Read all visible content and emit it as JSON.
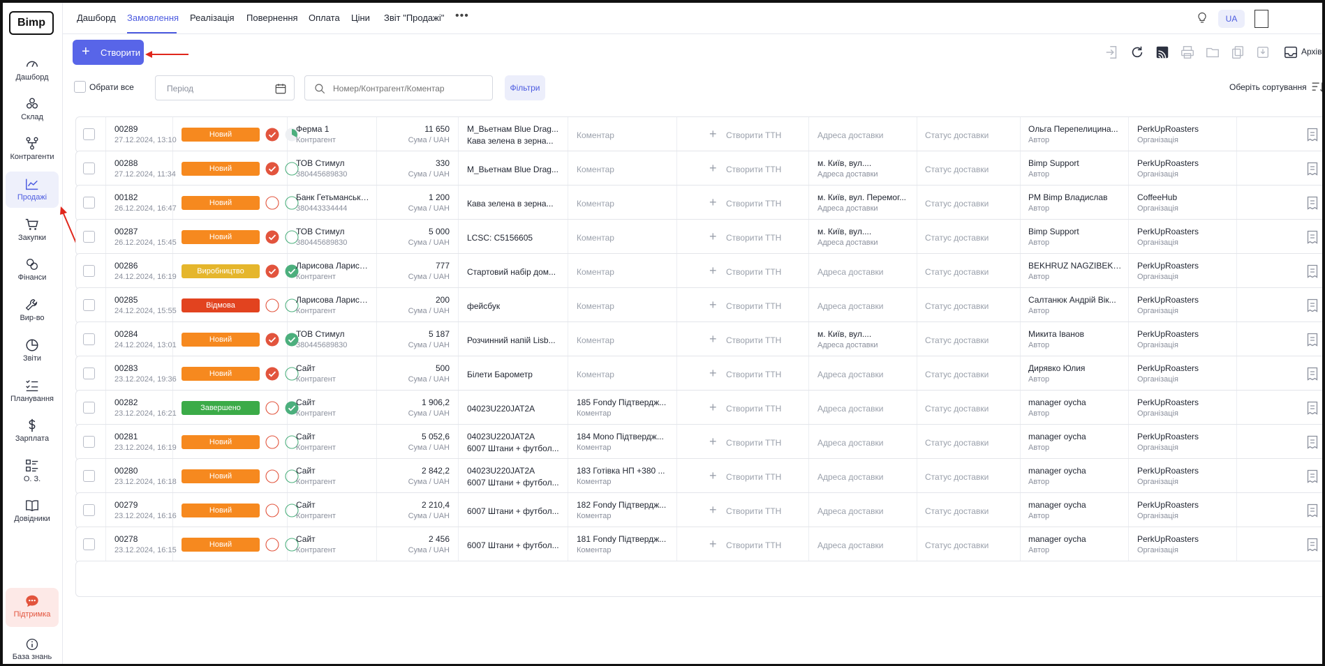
{
  "sidebar": {
    "logo": "Bimp",
    "items": [
      {
        "label": "Дашборд",
        "icon": "gauge-icon"
      },
      {
        "label": "Склад",
        "icon": "boxes-icon"
      },
      {
        "label": "Контрагенти",
        "icon": "network-icon"
      },
      {
        "label": "Продажі",
        "icon": "chart-line-icon",
        "active": true
      },
      {
        "label": "Закупки",
        "icon": "cart-icon"
      },
      {
        "label": "Фінанси",
        "icon": "coins-icon"
      },
      {
        "label": "Вир-во",
        "icon": "wrench-icon"
      },
      {
        "label": "Звіти",
        "icon": "pie-chart-icon"
      },
      {
        "label": "Планування",
        "icon": "checklist-icon"
      },
      {
        "label": "Зарплата",
        "icon": "dollar-icon"
      },
      {
        "label": "О. З.",
        "icon": "list-grid-icon"
      },
      {
        "label": "Довідники",
        "icon": "book-icon"
      }
    ],
    "support": "Підтримка",
    "knowledge_base": "База знань"
  },
  "topnav": {
    "tabs": [
      "Дашборд",
      "Замовлення",
      "Реалізація",
      "Повернення",
      "Оплата",
      "Ціни",
      "Звіт \"Продажі\""
    ],
    "active_tab": "Замовлення",
    "more": "•••",
    "lang": "UA"
  },
  "toolbar": {
    "create_label": "Створити",
    "archive_label": "Архів"
  },
  "filters": {
    "select_all": "Обрати все",
    "period_placeholder": "Період",
    "search_placeholder": "Номер/Контрагент/Коментар",
    "filters_button": "Фільтри",
    "sort_label": "Оберіть сортування"
  },
  "colors": {
    "accent": "#5865e8",
    "status_new": "#f6891f",
    "status_production": "#e5b62c",
    "status_rejected": "#e2431f",
    "status_done": "#3bab48",
    "check_red": "#e2543d",
    "check_green": "#4caf7d"
  },
  "labels": {
    "amount_caption": "Сума / UAH",
    "comment_placeholder": "Коментар",
    "comment_caption": "Коментар",
    "create_ttn": "Створити ТТН",
    "address_placeholder": "Адреса доставки",
    "address_caption": "Адреса доставки",
    "delivery_status": "Статус доставки",
    "author_caption": "Автор",
    "org_caption": "Організація",
    "contractor_caption": "Контрагент"
  },
  "orders": [
    {
      "number": "00289",
      "date": "27.12.2024, 13:10",
      "status": "Новий",
      "status_type": "new",
      "c1": "red-check",
      "c2": "progress",
      "contractor": "Ферма 1",
      "contractor_sub": "Контрагент",
      "amount": "11 650",
      "product1": "M_Вьетнам Blue Drag...",
      "product2": "Кава зелена в зерна...",
      "comment": "",
      "comment_sub": "",
      "address": "",
      "address_sub": "",
      "author": "Ольга Перепелицина...",
      "org": "PerkUpRoasters"
    },
    {
      "number": "00288",
      "date": "27.12.2024, 11:34",
      "status": "Новий",
      "status_type": "new",
      "c1": "red-check",
      "c2": "empty-green",
      "contractor": "ТОВ Стимул",
      "contractor_sub": "380445689830",
      "amount": "330",
      "product1": "M_Вьетнам Blue Drag...",
      "product2": "",
      "comment": "",
      "comment_sub": "",
      "address": "м. Київ, вул....",
      "address_sub": "Адреса доставки",
      "author": "Bimp Support",
      "org": "PerkUpRoasters"
    },
    {
      "number": "00182",
      "date": "26.12.2024, 16:47",
      "status": "Новий",
      "status_type": "new",
      "c1": "empty-red",
      "c2": "empty-green",
      "contractor": "Банк Гетьманське сх...",
      "contractor_sub": "380443334444",
      "amount": "1 200",
      "product1": "Кава зелена в зерна...",
      "product2": "",
      "comment": "",
      "comment_sub": "",
      "address": "м. Київ, вул. Перемог...",
      "address_sub": "Адреса доставки",
      "author": "PM Bimp Владислав",
      "org": "CoffeeHub"
    },
    {
      "number": "00287",
      "date": "26.12.2024, 15:45",
      "status": "Новий",
      "status_type": "new",
      "c1": "red-check",
      "c2": "empty-green",
      "contractor": "ТОВ Стимул",
      "contractor_sub": "380445689830",
      "amount": "5 000",
      "product1": "LCSC: C5156605",
      "product2": "",
      "comment": "",
      "comment_sub": "",
      "address": "м. Київ, вул....",
      "address_sub": "Адреса доставки",
      "author": "Bimp Support",
      "org": "PerkUpRoasters"
    },
    {
      "number": "00286",
      "date": "24.12.2024, 16:19",
      "status": "Виробництво",
      "status_type": "production",
      "c1": "red-check",
      "c2": "green-check",
      "contractor": "Ларисова Лариса Ла...",
      "contractor_sub": "Контрагент",
      "amount": "777",
      "product1": "Стартовий набір дом...",
      "product2": "",
      "comment": "",
      "comment_sub": "",
      "address": "",
      "address_sub": "",
      "author": "BEKHRUZ NAGZIBEKOV",
      "org": "PerkUpRoasters"
    },
    {
      "number": "00285",
      "date": "24.12.2024, 15:55",
      "status": "Відмова",
      "status_type": "rejected",
      "c1": "empty-red",
      "c2": "empty-green",
      "contractor": "Ларисова Лариса Ла...",
      "contractor_sub": "Контрагент",
      "amount": "200",
      "product1": "фейсбук",
      "product2": "",
      "comment": "",
      "comment_sub": "",
      "address": "",
      "address_sub": "",
      "author": "Салтанюк Андрій Вік...",
      "org": "PerkUpRoasters"
    },
    {
      "number": "00284",
      "date": "24.12.2024, 13:01",
      "status": "Новий",
      "status_type": "new",
      "c1": "red-check",
      "c2": "green-check",
      "contractor": "ТОВ Стимул",
      "contractor_sub": "380445689830",
      "amount": "5 187",
      "product1": "Розчинний напій Lisb...",
      "product2": "",
      "comment": "",
      "comment_sub": "",
      "address": "м. Київ, вул....",
      "address_sub": "Адреса доставки",
      "author": "Микита Іванов",
      "org": "PerkUpRoasters"
    },
    {
      "number": "00283",
      "date": "23.12.2024, 19:36",
      "status": "Новий",
      "status_type": "new",
      "c1": "red-check",
      "c2": "empty-green",
      "contractor": "Сайт",
      "contractor_sub": "Контрагент",
      "amount": "500",
      "product1": "Білети Барометр",
      "product2": "",
      "comment": "",
      "comment_sub": "",
      "address": "",
      "address_sub": "",
      "author": "Дирявко Юлия",
      "org": "PerkUpRoasters"
    },
    {
      "number": "00282",
      "date": "23.12.2024, 16:21",
      "status": "Завершено",
      "status_type": "done",
      "c1": "empty-red",
      "c2": "green-check",
      "contractor": "Сайт",
      "contractor_sub": "Контрагент",
      "amount": "1 906,2",
      "product1": "04023U220JAT2A",
      "product2": "",
      "comment": "185 Fondy Підтвердж...",
      "comment_sub": "Коментар",
      "address": "",
      "address_sub": "",
      "author": "manager oycha",
      "org": "PerkUpRoasters"
    },
    {
      "number": "00281",
      "date": "23.12.2024, 16:19",
      "status": "Новий",
      "status_type": "new",
      "c1": "empty-red",
      "c2": "empty-green",
      "contractor": "Сайт",
      "contractor_sub": "Контрагент",
      "amount": "5 052,6",
      "product1": "04023U220JAT2A",
      "product2": "6007 Штани + футбол...",
      "comment": "184 Mono Підтвердж...",
      "comment_sub": "Коментар",
      "address": "",
      "address_sub": "",
      "author": "manager oycha",
      "org": "PerkUpRoasters"
    },
    {
      "number": "00280",
      "date": "23.12.2024, 16:18",
      "status": "Новий",
      "status_type": "new",
      "c1": "empty-red",
      "c2": "empty-green",
      "contractor": "Сайт",
      "contractor_sub": "Контрагент",
      "amount": "2 842,2",
      "product1": "04023U220JAT2A",
      "product2": "6007 Штани + футбол...",
      "comment": "183 Готівка НП +380 ...",
      "comment_sub": "Коментар",
      "address": "",
      "address_sub": "",
      "author": "manager oycha",
      "org": "PerkUpRoasters"
    },
    {
      "number": "00279",
      "date": "23.12.2024, 16:16",
      "status": "Новий",
      "status_type": "new",
      "c1": "empty-red",
      "c2": "empty-green",
      "contractor": "Сайт",
      "contractor_sub": "Контрагент",
      "amount": "2 210,4",
      "product1": "6007 Штани + футбол...",
      "product2": "",
      "comment": "182 Fondy Підтвердж...",
      "comment_sub": "Коментар",
      "address": "",
      "address_sub": "",
      "author": "manager oycha",
      "org": "PerkUpRoasters"
    },
    {
      "number": "00278",
      "date": "23.12.2024, 16:15",
      "status": "Новий",
      "status_type": "new",
      "c1": "empty-red",
      "c2": "empty-green",
      "contractor": "Сайт",
      "contractor_sub": "Контрагент",
      "amount": "2 456",
      "product1": "6007 Штани + футбол...",
      "product2": "",
      "comment": "181 Fondy Підтвердж...",
      "comment_sub": "Коментар",
      "address": "",
      "address_sub": "",
      "author": "manager oycha",
      "org": "PerkUpRoasters"
    }
  ]
}
